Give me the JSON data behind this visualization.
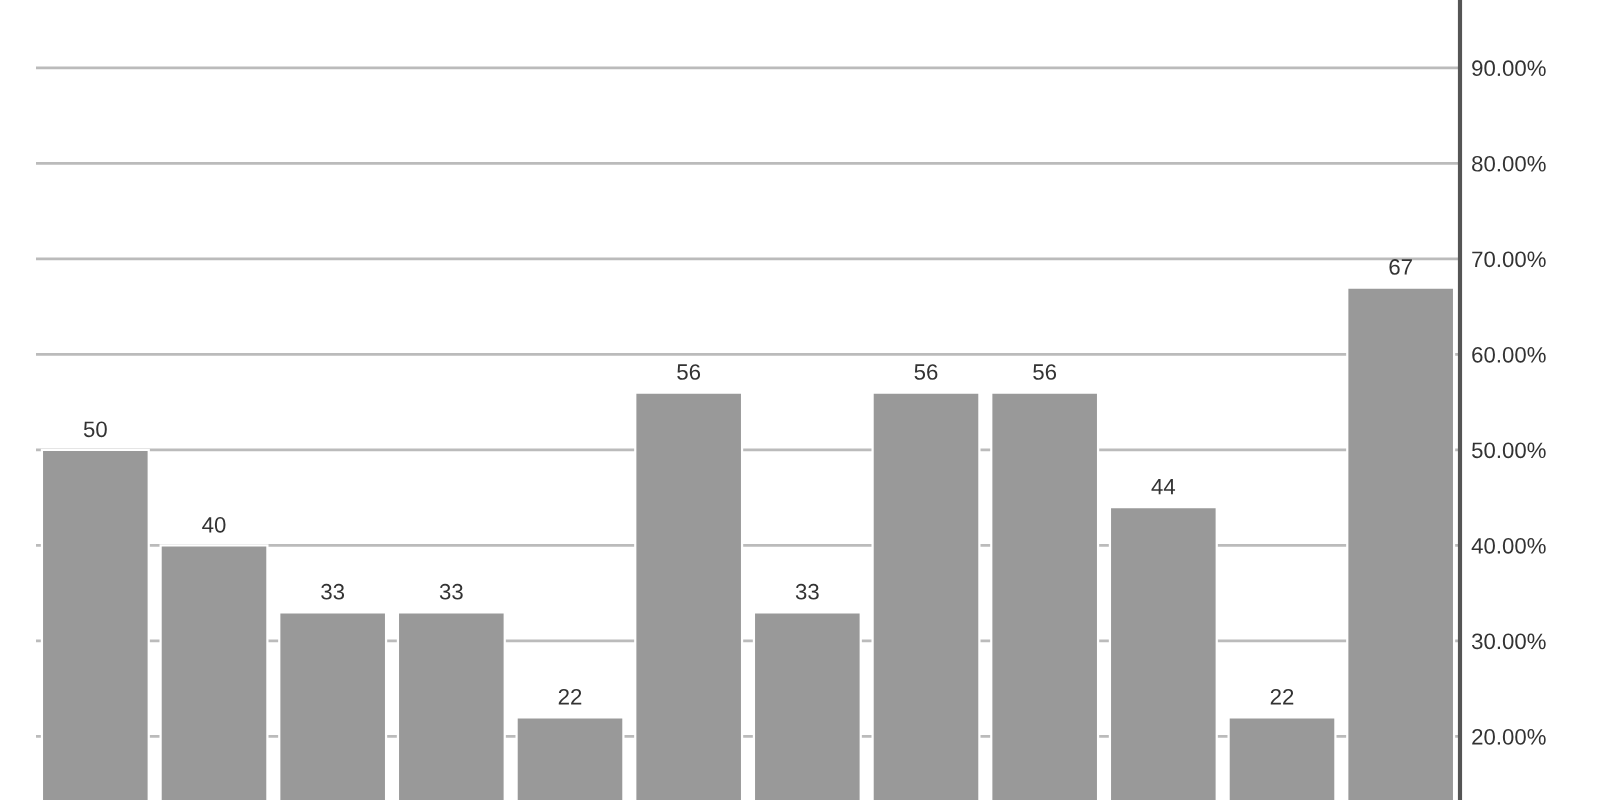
{
  "chart_data": {
    "type": "bar",
    "categories": [
      null,
      null,
      null,
      null,
      null,
      null,
      null,
      null,
      null,
      null,
      null,
      null
    ],
    "values": [
      50,
      40,
      33,
      33,
      22,
      56,
      33,
      56,
      56,
      44,
      22,
      67
    ],
    "color": "#999999",
    "data_labels": true,
    "grid": "y",
    "tick_labels": "y",
    "ylim": [
      13.35,
      97.1
    ],
    "yticks": [
      {
        "value": 20,
        "label": "20.00%"
      },
      {
        "value": 30,
        "label": "30.00%"
      },
      {
        "value": 40,
        "label": "40.00%"
      },
      {
        "value": 50,
        "label": "50.00%"
      },
      {
        "value": 60,
        "label": "60.00%"
      },
      {
        "value": 70,
        "label": "70.00%"
      },
      {
        "value": 80,
        "label": "80.00%"
      },
      {
        "value": 90,
        "label": "90.00%"
      }
    ]
  }
}
